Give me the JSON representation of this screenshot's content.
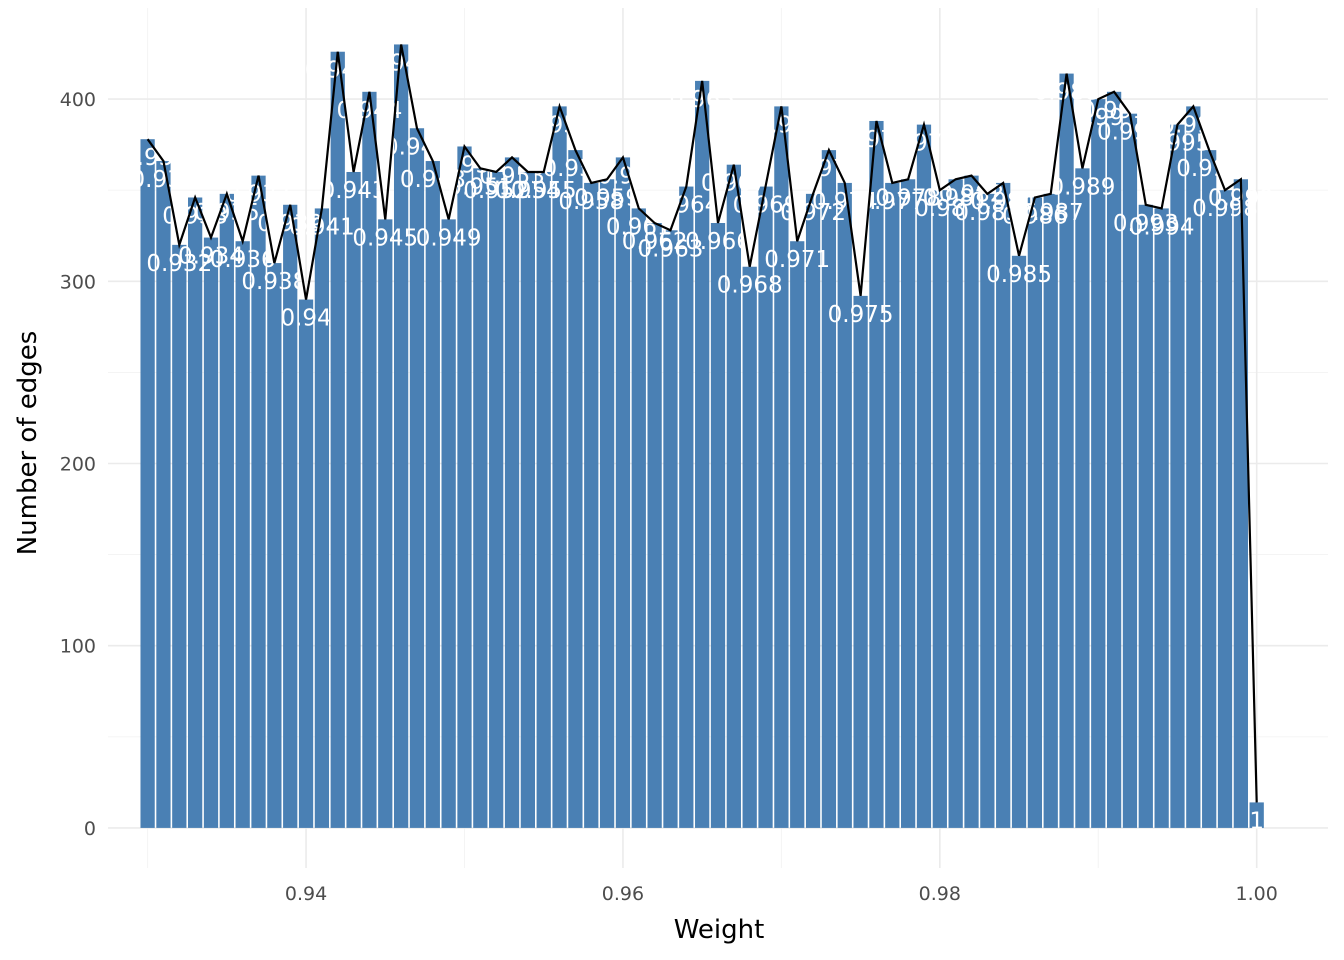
{
  "chart_data": {
    "type": "bar",
    "title": "",
    "xlabel": "Weight",
    "ylabel": "Number of edges",
    "xlim": [
      0.9275,
      1.0045
    ],
    "ylim": [
      -22,
      450
    ],
    "x_ticks": [
      0.94,
      0.96,
      0.98,
      1.0
    ],
    "x_tick_labels": [
      "0.94",
      "0.96",
      "0.98",
      "1.00"
    ],
    "y_ticks": [
      0,
      100,
      200,
      300,
      400
    ],
    "y_tick_labels": [
      "0",
      "100",
      "200",
      "300",
      "400"
    ],
    "bar_width": 0.0009,
    "grid": true,
    "legend": "none",
    "colors": {
      "bar": "#4a80b4",
      "line": "#000000",
      "label": "#ffffff"
    },
    "x": [
      0.93,
      0.931,
      0.932,
      0.933,
      0.934,
      0.935,
      0.936,
      0.937,
      0.938,
      0.939,
      0.94,
      0.941,
      0.942,
      0.943,
      0.944,
      0.945,
      0.946,
      0.947,
      0.948,
      0.949,
      0.95,
      0.951,
      0.952,
      0.953,
      0.954,
      0.955,
      0.956,
      0.957,
      0.958,
      0.959,
      0.96,
      0.961,
      0.962,
      0.963,
      0.964,
      0.965,
      0.966,
      0.967,
      0.968,
      0.969,
      0.97,
      0.971,
      0.972,
      0.973,
      0.974,
      0.975,
      0.976,
      0.977,
      0.978,
      0.979,
      0.98,
      0.981,
      0.982,
      0.983,
      0.984,
      0.985,
      0.986,
      0.987,
      0.988,
      0.989,
      0.99,
      0.991,
      0.992,
      0.993,
      0.994,
      0.995,
      0.996,
      0.997,
      0.998,
      0.999,
      1.0
    ],
    "values": [
      378,
      366,
      320,
      346,
      324,
      348,
      322,
      358,
      310,
      342,
      290,
      340,
      426,
      360,
      404,
      334,
      430,
      384,
      366,
      334,
      374,
      362,
      360,
      368,
      360,
      360,
      396,
      372,
      354,
      356,
      368,
      340,
      332,
      328,
      352,
      410,
      332,
      364,
      308,
      352,
      396,
      322,
      348,
      372,
      354,
      292,
      388,
      354,
      356,
      386,
      350,
      356,
      358,
      348,
      354,
      314,
      346,
      348,
      414,
      362,
      400,
      404,
      392,
      342,
      340,
      386,
      396,
      372,
      350,
      356,
      14
    ],
    "labels": [
      "0.93",
      "0.931",
      "0.932",
      "0.933",
      "0.934",
      "0.935",
      "0.936",
      "0.937",
      "0.938",
      "0.939",
      "0.94",
      "0.941",
      "0.942",
      "0.943",
      "0.944",
      "0.945",
      "0.946",
      "0.947",
      "0.948",
      "0.949",
      "0.95",
      "0.951",
      "0.952",
      "0.953",
      "0.954",
      "0.955",
      "0.956",
      "0.957",
      "0.958",
      "0.959",
      "0.96",
      "0.961",
      "0.962",
      "0.963",
      "0.964",
      "0.965",
      "0.966",
      "0.967",
      "0.968",
      "0.969",
      "0.97",
      "0.971",
      "0.972",
      "0.973",
      "0.974",
      "0.975",
      "0.976",
      "0.977",
      "0.978",
      "0.979",
      "0.98",
      "0.981",
      "0.982",
      "0.983",
      "0.984",
      "0.985",
      "0.986",
      "0.987",
      "0.988",
      "0.989",
      "0.99",
      "0.991",
      "0.992",
      "0.993",
      "0.994",
      "0.995",
      "0.996",
      "0.997",
      "0.998",
      "0.999",
      "1"
    ]
  }
}
